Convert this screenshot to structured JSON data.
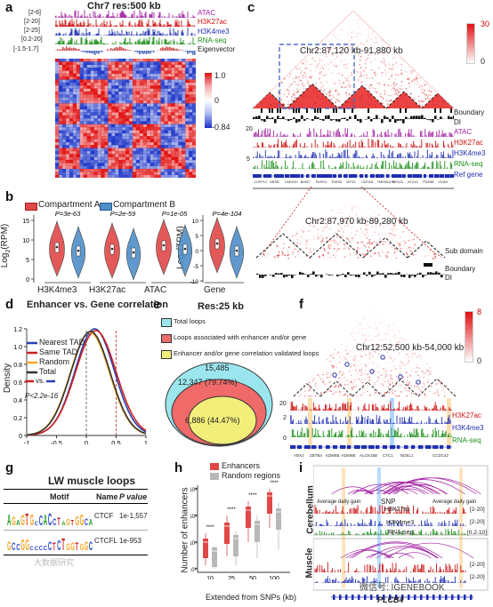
{
  "panel_letters": [
    "a",
    "b",
    "c",
    "d",
    "e",
    "f",
    "g",
    "h",
    "i"
  ],
  "colors": {
    "atac": "#a01fa0",
    "h3k27ac": "#cc1111",
    "h3k4me3": "#1f2fb0",
    "rnaseq": "#1d8f1d",
    "eig": "#777777",
    "red": "#e02020",
    "blue": "#2a4bd0",
    "compA": "#e04848",
    "compB": "#4f8fc8"
  },
  "a": {
    "title": "Chr7 res:500 kb",
    "tracks": [
      {
        "range": "[2-6]",
        "name": "ATAC"
      },
      {
        "range": "[2-20]",
        "name": "H3K27ac"
      },
      {
        "range": "[2-25]",
        "name": "H3K4me3"
      },
      {
        "range": "[0.2-20]",
        "name": "RNA-seq"
      },
      {
        "range": "[-1.5-1.7]",
        "name": "Eigenvector"
      }
    ],
    "colorbar": {
      "max": "1.0",
      "mid": "0",
      "min": "-0.84"
    }
  },
  "b": {
    "legend": [
      "Compartment A",
      "Compartment B"
    ],
    "ylabel_rpm": "Log2(RPM)",
    "ylabel_tpm": "Log2(TPM)",
    "yticks_rpm": [
      "15",
      "10",
      "5",
      "0"
    ],
    "yticks_tpm": [
      "10",
      "5",
      "0",
      "-5",
      "-10"
    ],
    "groups": [
      {
        "name": "H3K4me3",
        "p": "P=3e-63"
      },
      {
        "name": "H3K27ac",
        "p": "P=2e-59"
      },
      {
        "name": "ATAC",
        "p": "P=1e-05"
      },
      {
        "name": "Gene",
        "p": "P=4e-104"
      }
    ]
  },
  "c": {
    "colorbar": {
      "max": "30",
      "min": "0"
    },
    "top_title": "Chr2:87,120 kb-91,880 kb",
    "zoom_title": "Chr2:87,970 kb-89,280 kb",
    "labels": [
      "Boundary",
      "DI"
    ],
    "tracks": [
      {
        "range": "20",
        "name": "ATAC"
      },
      {
        "range": "20",
        "name": "H3K27ac"
      },
      {
        "range": "5",
        "name": "H3K4me3"
      },
      {
        "range": "5",
        "name": "RNA-seq"
      },
      {
        "range": "",
        "name": "Ref gene"
      }
    ],
    "genes": [
      "LHFPL2",
      "ARSB",
      "DMGDH",
      "BHMT",
      "PAPD4",
      "THBS4",
      "MTX3",
      "CMYA5",
      "TMEM167A",
      "RPS23",
      "ATG10",
      "PDE8B",
      "VCAN"
    ],
    "zoom_labels": [
      "Sub domain",
      "Boundary",
      "DI"
    ]
  },
  "d": {
    "title": "Enhancer vs. Gene correlation",
    "legend": [
      "Nearest TAD",
      "Same TAD",
      "Random",
      "Total"
    ],
    "vs_text": "vs.",
    "pvalue": "P<2.2e-16",
    "ylabel": "Density",
    "xticks": [
      "-1",
      "-0.5",
      "0",
      "0.5",
      "1"
    ],
    "yticks": [
      "0",
      "0.2",
      "0.4",
      "0.6",
      "0.8",
      "1.0",
      "1.2"
    ]
  },
  "e": {
    "title": "Res:25 kb",
    "legend": [
      "Total loops",
      "Loops associated with enhancer and/or gene",
      "Enhancer and/or gene correlation validated loops"
    ],
    "counts": [
      "15,485",
      "12,347 (79.74%)",
      "6,886 (44.47%)"
    ]
  },
  "f": {
    "colorbar": {
      "max": "8",
      "min": "0"
    },
    "title": "Chr12:52,500 kb-54,000 kb",
    "tracks": [
      {
        "range": "20",
        "name": "H3K27ac"
      },
      {
        "range": "2",
        "name": "H3K4me3"
      },
      {
        "range": "0",
        "name": "RNA-seq"
      }
    ],
    "genes": [
      "YBX2",
      "ZBTB4",
      "KDM6B",
      "KDM6B",
      "ALOX15B",
      "CTC1",
      "NDEL1",
      "CCDC42"
    ]
  },
  "g": {
    "title": "LW muscle loops",
    "headers": [
      "Motif",
      "Name",
      "P value"
    ],
    "rows": [
      {
        "name": "CTCF",
        "p": "1e-1,557"
      },
      {
        "name": "CTCFL",
        "p": "1e-953"
      }
    ],
    "watermark": "大数据研究"
  },
  "h": {
    "legend": [
      "Enhancers",
      "Random regions"
    ],
    "ylabel": "Number of enhancers",
    "xlabel": "Extended from SNPs (kb)",
    "xticks": [
      "10",
      "25",
      "50",
      "100"
    ],
    "yticks": [
      "10³",
      "10²",
      "10¹",
      "10⁰"
    ],
    "stars": [
      "****",
      "****",
      "****",
      "****"
    ]
  },
  "i": {
    "tissues": [
      "Cerebellum",
      "Muscle"
    ],
    "snp": "SNP",
    "avg_gain": "Average daily gain",
    "tracks": [
      "H3K27ac",
      "H3K4me3",
      "RNA-seq"
    ],
    "ranges": [
      "[2-20]",
      "[2-20]",
      "[0.2-10]"
    ],
    "gene": "PLCB4",
    "watermark": "微信号: IGENEBOOK"
  }
}
